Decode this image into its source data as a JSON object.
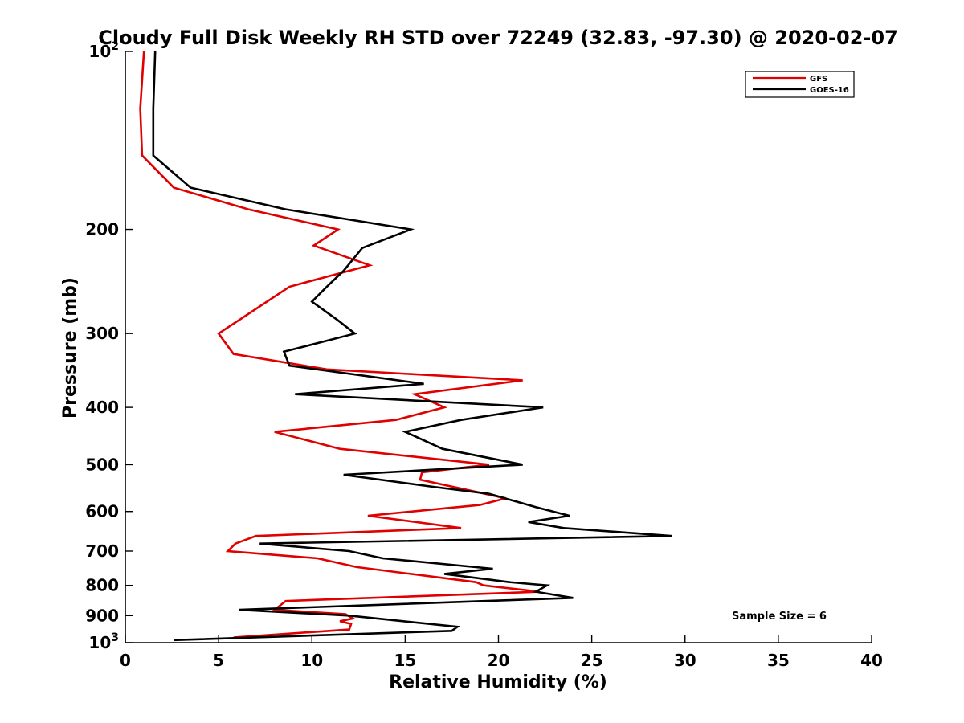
{
  "chart_data": {
    "type": "line",
    "title": "Cloudy Full Disk Weekly RH STD over 72249 (32.83, -97.30) @ 2020-02-07",
    "xlabel": "Relative Humidity (%)",
    "ylabel": "Pressure (mb)",
    "xlim": [
      0,
      40
    ],
    "ylim": [
      100,
      1000
    ],
    "y_scale": "log",
    "y_reversed": true,
    "x_ticks": [
      "0",
      "5",
      "10",
      "15",
      "20",
      "25",
      "30",
      "35",
      "40"
    ],
    "y_ticks": [
      {
        "value": 100,
        "base": "10",
        "exp": "2"
      },
      {
        "value": 200,
        "label": "200"
      },
      {
        "value": 300,
        "label": "300"
      },
      {
        "value": 400,
        "label": "400"
      },
      {
        "value": 500,
        "label": "500"
      },
      {
        "value": 600,
        "label": "600"
      },
      {
        "value": 700,
        "label": "700"
      },
      {
        "value": 800,
        "label": "800"
      },
      {
        "value": 900,
        "label": "900"
      },
      {
        "value": 1000,
        "base": "10",
        "exp": "3"
      }
    ],
    "legend_position": "top-right",
    "annotation": "Sample Size = 6",
    "series": [
      {
        "name": "GFS",
        "color": "#e00000",
        "points": [
          [
            1.0,
            100
          ],
          [
            0.8,
            125
          ],
          [
            0.9,
            150
          ],
          [
            2.6,
            170
          ],
          [
            6.6,
            185
          ],
          [
            11.4,
            200
          ],
          [
            10.1,
            213
          ],
          [
            13.1,
            230
          ],
          [
            8.8,
            250
          ],
          [
            7.2,
            270
          ],
          [
            5.0,
            300
          ],
          [
            5.8,
            325
          ],
          [
            10.8,
            345
          ],
          [
            21.3,
            360
          ],
          [
            15.5,
            380
          ],
          [
            17.1,
            400
          ],
          [
            14.5,
            420
          ],
          [
            8.0,
            440
          ],
          [
            11.5,
            470
          ],
          [
            19.5,
            500
          ],
          [
            15.9,
            515
          ],
          [
            15.8,
            530
          ],
          [
            20.4,
            570
          ],
          [
            19.0,
            585
          ],
          [
            13.0,
            610
          ],
          [
            18.0,
            640
          ],
          [
            7.0,
            660
          ],
          [
            5.9,
            680
          ],
          [
            5.5,
            700
          ],
          [
            10.3,
            720
          ],
          [
            12.4,
            745
          ],
          [
            18.8,
            790
          ],
          [
            19.2,
            800
          ],
          [
            22.2,
            820
          ],
          [
            8.6,
            850
          ],
          [
            8.0,
            880
          ],
          [
            11.8,
            895
          ],
          [
            12.2,
            910
          ],
          [
            11.5,
            920
          ],
          [
            12.1,
            930
          ],
          [
            12.0,
            950
          ],
          [
            5.8,
            980
          ]
        ]
      },
      {
        "name": "GOES-16",
        "color": "#000000",
        "points": [
          [
            1.6,
            100
          ],
          [
            1.5,
            125
          ],
          [
            1.5,
            150
          ],
          [
            3.5,
            170
          ],
          [
            8.6,
            185
          ],
          [
            15.3,
            200
          ],
          [
            12.7,
            215
          ],
          [
            11.7,
            235
          ],
          [
            10.8,
            250
          ],
          [
            10.0,
            265
          ],
          [
            11.4,
            285
          ],
          [
            12.3,
            300
          ],
          [
            8.5,
            322
          ],
          [
            8.8,
            340
          ],
          [
            16.0,
            365
          ],
          [
            9.1,
            380
          ],
          [
            22.4,
            400
          ],
          [
            18.0,
            420
          ],
          [
            15.0,
            440
          ],
          [
            17.0,
            470
          ],
          [
            21.3,
            500
          ],
          [
            11.7,
            520
          ],
          [
            16.5,
            545
          ],
          [
            19.5,
            560
          ],
          [
            22.0,
            590
          ],
          [
            23.8,
            610
          ],
          [
            21.6,
            625
          ],
          [
            23.5,
            640
          ],
          [
            29.3,
            660
          ],
          [
            7.2,
            680
          ],
          [
            12.0,
            700
          ],
          [
            13.8,
            720
          ],
          [
            19.7,
            750
          ],
          [
            17.1,
            765
          ],
          [
            20.6,
            790
          ],
          [
            22.6,
            800
          ],
          [
            22.0,
            820
          ],
          [
            24.0,
            840
          ],
          [
            19.4,
            850
          ],
          [
            6.1,
            880
          ],
          [
            12.0,
            900
          ],
          [
            14.9,
            920
          ],
          [
            17.8,
            940
          ],
          [
            17.5,
            955
          ],
          [
            2.6,
            990
          ]
        ]
      }
    ]
  }
}
